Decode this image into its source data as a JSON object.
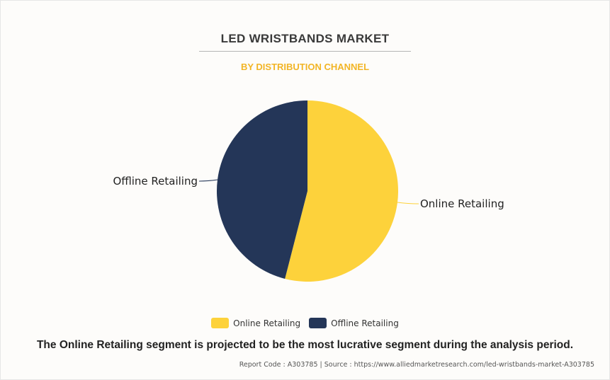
{
  "chart_data": {
    "type": "pie",
    "title": "LED WRISTBANDS MARKET",
    "subtitle": "BY DISTRIBUTION CHANNEL",
    "categories": [
      "Online Retailing",
      "Offline Retailing"
    ],
    "values": [
      54,
      46
    ],
    "colors": [
      "#fdd23b",
      "#243658"
    ],
    "legend_position": "bottom"
  },
  "caption": "The Online Retailing segment is projected to be the most lucrative segment during the analysis period.",
  "footer": "Report Code : A303785  |  Source : https://www.alliedmarketresearch.com/led-wristbands-market-A303785"
}
